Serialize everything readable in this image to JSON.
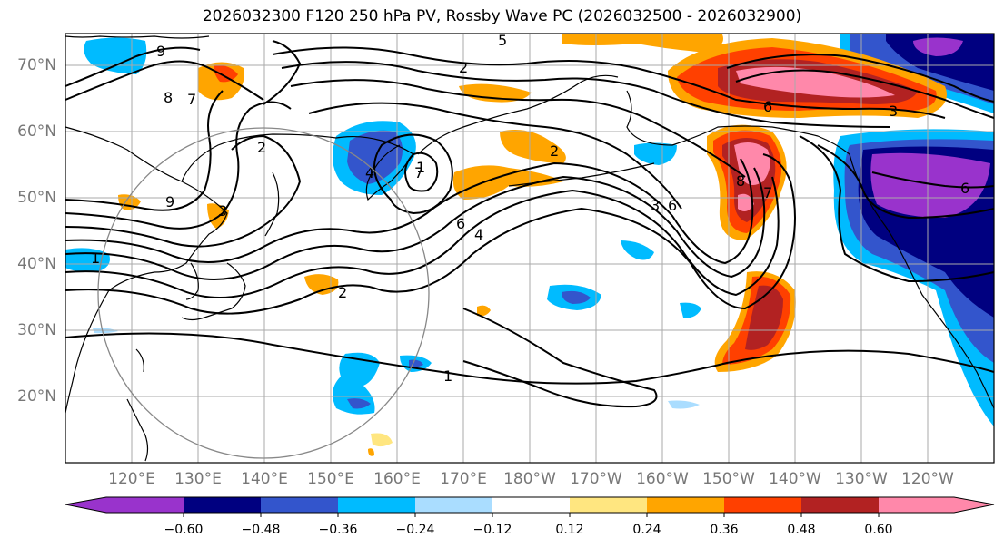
{
  "title": "2026032300 F120 250 hPa PV, Rossby Wave PC (2026032500 - 2026032900)",
  "map": {
    "latitude_labels": [
      "70°N",
      "60°N",
      "50°N",
      "40°N",
      "30°N",
      "20°N"
    ],
    "longitude_labels": [
      "120°E",
      "130°E",
      "140°E",
      "150°E",
      "160°E",
      "170°E",
      "180°W",
      "170°W",
      "160°W",
      "150°W",
      "140°W",
      "130°W",
      "120°W"
    ],
    "contour_labels": [
      "9",
      "8",
      "7",
      "2",
      "3",
      "5",
      "2",
      "9",
      "4",
      "1",
      "7",
      "1",
      "6",
      "8",
      "7",
      "6",
      "3",
      "6",
      "4",
      "2",
      "6",
      "2",
      "1",
      "3"
    ]
  },
  "colorbar": {
    "tick_labels": [
      "−0.60",
      "−0.48",
      "−0.36",
      "−0.24",
      "−0.12",
      "0.12",
      "0.24",
      "0.36",
      "0.48",
      "0.60"
    ],
    "colors": [
      "#9933cc",
      "#000080",
      "#3355cc",
      "#00bbff",
      "#aaddff",
      "#ffffff",
      "#ffe680",
      "#ffa500",
      "#ff4000",
      "#b22222",
      "#ff88aa"
    ]
  }
}
